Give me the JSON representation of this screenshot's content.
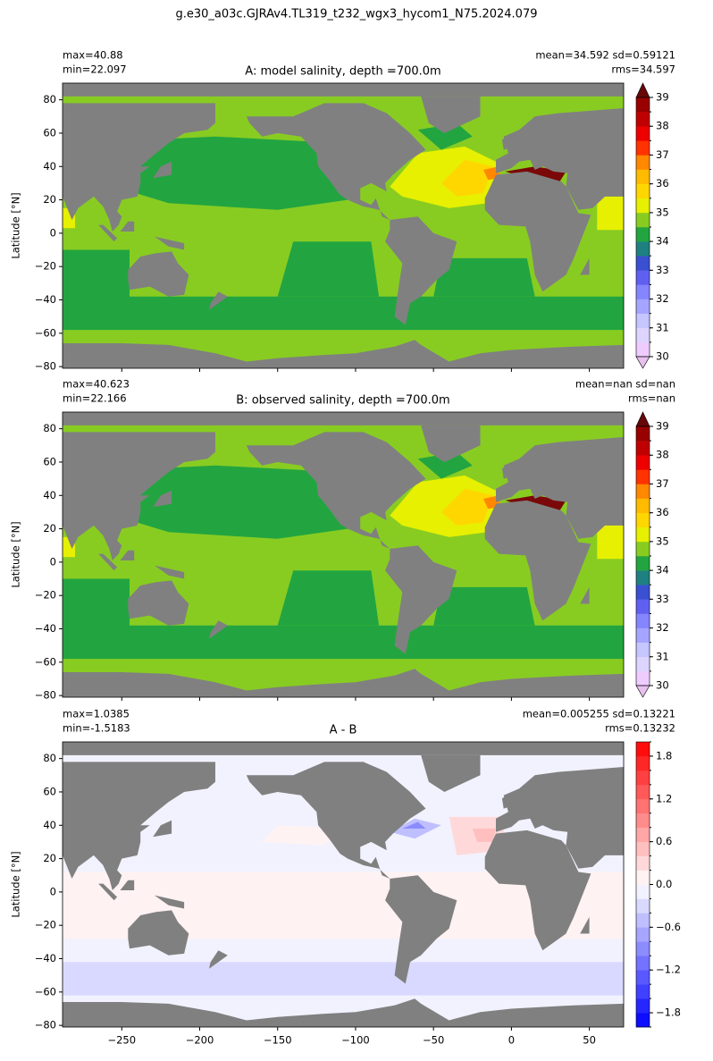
{
  "suptitle": "g.e30_a03c.GJRAv4.TL319_t232_wgx3_hycom1_N75.2024.079",
  "chart_data": [
    {
      "type": "contourf",
      "title": "A: model salinity, depth =700.0m",
      "stats_left": [
        "max=40.88",
        "min=22.097"
      ],
      "stats_right": [
        "mean=34.592 sd=0.59121",
        "rms=34.597"
      ],
      "ylabel": "Latitude [°N]",
      "xlim": [
        -288,
        72
      ],
      "ylim": [
        -81,
        90
      ],
      "xticks": [
        -250,
        -200,
        -150,
        -100,
        -50,
        0,
        50
      ],
      "xtick_labels": false,
      "yticks": [
        {
          "value": -80,
          "label": "−80"
        },
        {
          "value": -60,
          "label": "−60"
        },
        {
          "value": -40,
          "label": "−40"
        },
        {
          "value": -20,
          "label": "−20"
        },
        0,
        20,
        40,
        60,
        80
      ],
      "land_color": "#808080",
      "colorbar": {
        "levels": [
          30,
          30.5,
          31,
          31.5,
          32,
          32.5,
          33,
          33.5,
          34,
          34.5,
          35,
          35.5,
          36,
          36.5,
          37,
          37.5,
          38,
          38.5,
          39
        ],
        "colors": [
          "#eeccff",
          "#ddd5ff",
          "#c5c5ff",
          "#a5a5ff",
          "#8585ff",
          "#6060f0",
          "#3a50d0",
          "#1e8080",
          "#22a540",
          "#88cc22",
          "#e6f000",
          "#ffd700",
          "#ffbb00",
          "#ff8800",
          "#ff3300",
          "#ee0000",
          "#c00000",
          "#990000"
        ],
        "extend": "both",
        "under_color": "#e8c0f0",
        "over_color": "#660808",
        "ticks": [
          30,
          31,
          32,
          33,
          34,
          35,
          36,
          37,
          38,
          39
        ]
      }
    },
    {
      "type": "contourf",
      "title": "B: observed salinity, depth =700.0m",
      "stats_left": [
        "max=40.623",
        "min=22.166"
      ],
      "stats_right": [
        "mean=nan sd=nan",
        "rms=nan"
      ],
      "ylabel": "Latitude [°N]",
      "xlim": [
        -288,
        72
      ],
      "ylim": [
        -81,
        90
      ],
      "xticks": [
        -250,
        -200,
        -150,
        -100,
        -50,
        0,
        50
      ],
      "xtick_labels": false,
      "yticks": [
        {
          "value": -80,
          "label": "−80"
        },
        {
          "value": -60,
          "label": "−60"
        },
        {
          "value": -40,
          "label": "−40"
        },
        {
          "value": -20,
          "label": "−20"
        },
        0,
        20,
        40,
        60,
        80
      ],
      "land_color": "#808080",
      "colorbar": {
        "levels": [
          30,
          30.5,
          31,
          31.5,
          32,
          32.5,
          33,
          33.5,
          34,
          34.5,
          35,
          35.5,
          36,
          36.5,
          37,
          37.5,
          38,
          38.5,
          39
        ],
        "colors": [
          "#eeccff",
          "#ddd5ff",
          "#c5c5ff",
          "#a5a5ff",
          "#8585ff",
          "#6060f0",
          "#3a50d0",
          "#1e8080",
          "#22a540",
          "#88cc22",
          "#e6f000",
          "#ffd700",
          "#ffbb00",
          "#ff8800",
          "#ff3300",
          "#ee0000",
          "#c00000",
          "#990000"
        ],
        "extend": "both",
        "under_color": "#e8c0f0",
        "over_color": "#660808",
        "ticks": [
          30,
          31,
          32,
          33,
          34,
          35,
          36,
          37,
          38,
          39
        ]
      }
    },
    {
      "type": "contourf",
      "title": "A - B",
      "stats_left": [
        "max=1.0385",
        "min=-1.5183"
      ],
      "stats_right": [
        "mean=0.005255 sd=0.13221",
        "rms=0.13232"
      ],
      "ylabel": "Latitude [°N]",
      "xlim": [
        -288,
        72
      ],
      "ylim": [
        -81,
        90
      ],
      "xticks": [
        {
          "value": -250,
          "label": "−250"
        },
        {
          "value": -200,
          "label": "−200"
        },
        {
          "value": -150,
          "label": "−150"
        },
        {
          "value": -100,
          "label": "−100"
        },
        {
          "value": -50,
          "label": "−50"
        },
        0,
        50
      ],
      "xtick_labels": true,
      "yticks": [
        {
          "value": -80,
          "label": "−80"
        },
        {
          "value": -60,
          "label": "−60"
        },
        {
          "value": -40,
          "label": "−40"
        },
        {
          "value": -20,
          "label": "−20"
        },
        0,
        20,
        40,
        60,
        80
      ],
      "land_color": "#808080",
      "colorbar": {
        "levels": [
          -2,
          -1.8,
          -1.6,
          -1.4,
          -1.2,
          -1,
          -0.8,
          -0.6,
          -0.4,
          -0.2,
          0,
          0.2,
          0.4,
          0.6,
          0.8,
          1,
          1.2,
          1.4,
          1.6,
          1.8,
          2
        ],
        "colors": [
          "#0d0dff",
          "#2626ff",
          "#4040ff",
          "#5959ff",
          "#7373ff",
          "#8c8cff",
          "#a6a6ff",
          "#bfbfff",
          "#d9d9ff",
          "#f2f2ff",
          "#fff2f2",
          "#ffd9d9",
          "#ffbfbf",
          "#ffa6a6",
          "#ff8c8c",
          "#ff7373",
          "#ff5959",
          "#ff4040",
          "#ff2626",
          "#ff0d0d"
        ],
        "extend": "neither",
        "ticks": [
          {
            "value": -1.8,
            "label": "−1.8"
          },
          {
            "value": -1.2,
            "label": "−1.2"
          },
          {
            "value": -0.6,
            "label": "−0.6"
          },
          {
            "value": 0,
            "label": "0.0"
          },
          0.6,
          1.2,
          1.8
        ]
      }
    }
  ]
}
